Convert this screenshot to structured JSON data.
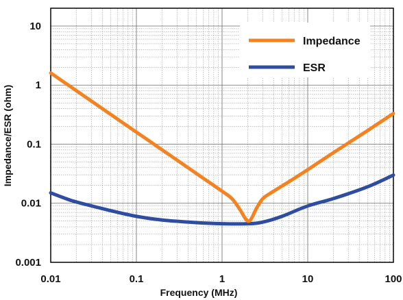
{
  "chart_data": {
    "type": "line",
    "xscale": "log",
    "yscale": "log",
    "xlim": [
      0.01,
      100
    ],
    "ylim": [
      0.001,
      20
    ],
    "xlabel": "Frequency  (MHz)",
    "ylabel": "Impedance/ESR (ohm)",
    "xticks": [
      {
        "value": 0.01,
        "label": "0.01"
      },
      {
        "value": 0.1,
        "label": "0.1"
      },
      {
        "value": 1,
        "label": "1"
      },
      {
        "value": 10,
        "label": "10"
      },
      {
        "value": 100,
        "label": "100"
      }
    ],
    "yticks": [
      {
        "value": 0.001,
        "label": "0.001"
      },
      {
        "value": 0.01,
        "label": "0.01"
      },
      {
        "value": 0.1,
        "label": "0.1"
      },
      {
        "value": 1,
        "label": "1"
      },
      {
        "value": 10,
        "label": "10"
      }
    ],
    "grid": true,
    "legend_position": "top-right",
    "series": [
      {
        "name": "Impedance",
        "color": "#F58220",
        "x": [
          0.01,
          0.02,
          0.05,
          0.1,
          0.2,
          0.5,
          1.0,
          1.3,
          1.6,
          1.8,
          2.0,
          2.2,
          2.5,
          3.0,
          4.0,
          6.0,
          10,
          20,
          50,
          100
        ],
        "y": [
          1.6,
          0.8,
          0.32,
          0.16,
          0.08,
          0.032,
          0.016,
          0.012,
          0.008,
          0.006,
          0.005,
          0.0055,
          0.008,
          0.012,
          0.016,
          0.023,
          0.037,
          0.072,
          0.17,
          0.33
        ]
      },
      {
        "name": "ESR",
        "color": "#2E4DA0",
        "x": [
          0.01,
          0.015,
          0.02,
          0.05,
          0.1,
          0.2,
          0.5,
          1.0,
          2.0,
          3.0,
          5.0,
          10,
          20,
          50,
          100
        ],
        "y": [
          0.015,
          0.012,
          0.0105,
          0.0075,
          0.006,
          0.0052,
          0.0047,
          0.0045,
          0.0045,
          0.0048,
          0.006,
          0.009,
          0.012,
          0.019,
          0.03
        ]
      }
    ]
  }
}
